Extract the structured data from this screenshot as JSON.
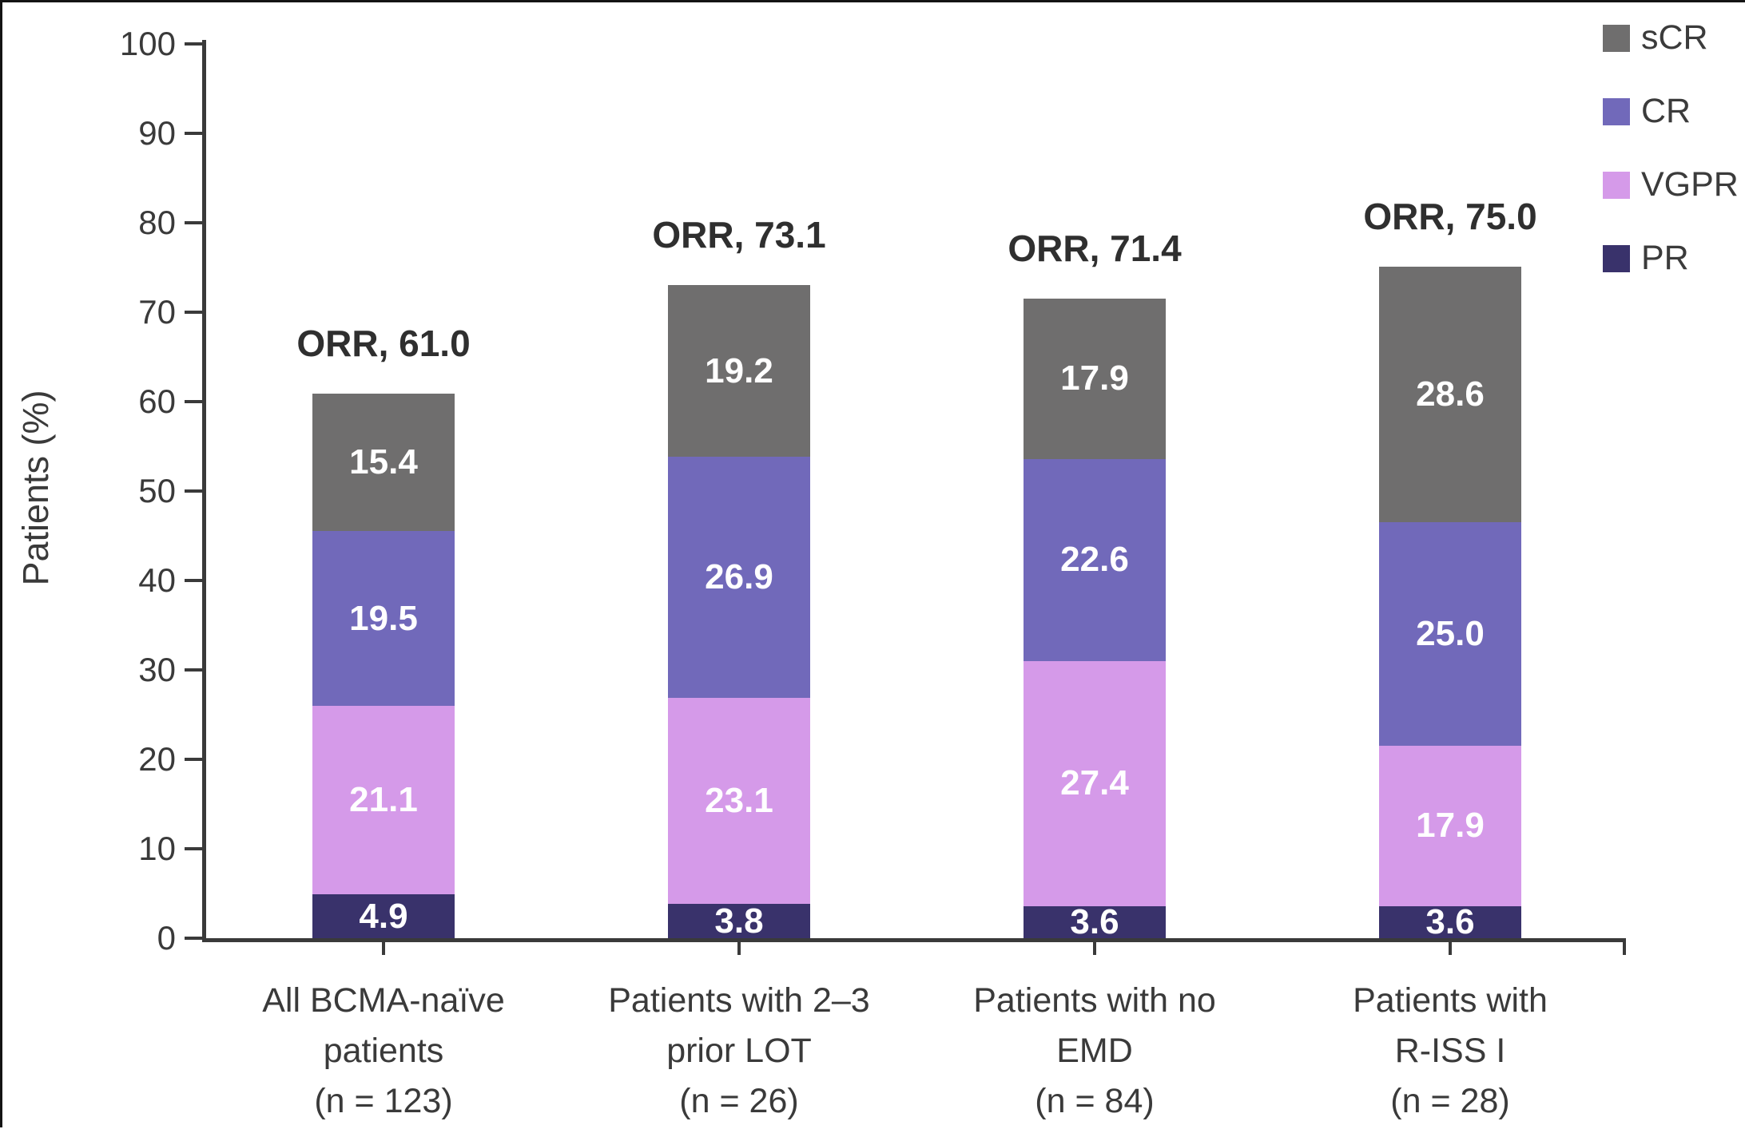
{
  "chart_data": {
    "type": "bar",
    "stacked": true,
    "title": "",
    "xlabel": "",
    "ylabel": "Patients (%)",
    "ylim": [
      0,
      100
    ],
    "ytick_step": 10,
    "grid": false,
    "legend_position": "top-right",
    "categories": [
      {
        "lines": [
          "All BCMA-naïve",
          "patients",
          "(n = 123)"
        ],
        "orr_label": "ORR, 61.0",
        "orr": 61.0
      },
      {
        "lines": [
          "Patients with 2–3",
          "prior LOT",
          "(n = 26)"
        ],
        "orr_label": "ORR, 73.1",
        "orr": 73.1
      },
      {
        "lines": [
          "Patients with no",
          "EMD",
          "(n = 84)"
        ],
        "orr_label": "ORR, 71.4",
        "orr": 71.4
      },
      {
        "lines": [
          "Patients with",
          "R-ISS I",
          "(n = 28)"
        ],
        "orr_label": "ORR, 75.0",
        "orr": 75.0
      }
    ],
    "stack_order_bottom_to_top": [
      "PR",
      "VGPR",
      "CR",
      "sCR"
    ],
    "series": [
      {
        "name": "sCR",
        "color": "#6f6e6e",
        "values": [
          15.4,
          19.2,
          17.9,
          28.6
        ]
      },
      {
        "name": "CR",
        "color": "#7169ba",
        "values": [
          19.5,
          26.9,
          22.6,
          25.0
        ]
      },
      {
        "name": "VGPR",
        "color": "#d59ae9",
        "values": [
          21.1,
          23.1,
          27.4,
          17.9
        ]
      },
      {
        "name": "PR",
        "color": "#39326b",
        "values": [
          4.9,
          3.8,
          3.6,
          3.6
        ]
      }
    ]
  },
  "y_axis": {
    "tick_labels": [
      "0",
      "10",
      "20",
      "30",
      "40",
      "50",
      "60",
      "70",
      "80",
      "90",
      "100"
    ]
  },
  "legend": {
    "items": [
      {
        "label": "sCR",
        "color": "#6f6e6e"
      },
      {
        "label": "CR",
        "color": "#7169ba"
      },
      {
        "label": "VGPR",
        "color": "#d59ae9"
      },
      {
        "label": "PR",
        "color": "#39326b"
      }
    ]
  },
  "colors": {
    "axis": "#3a3a3a",
    "value_label": "#ffffff",
    "orr_label": "#2f2f2f",
    "legend_text": "#3b3b3b",
    "background": "#ffffff",
    "frame_border": "#141414"
  }
}
